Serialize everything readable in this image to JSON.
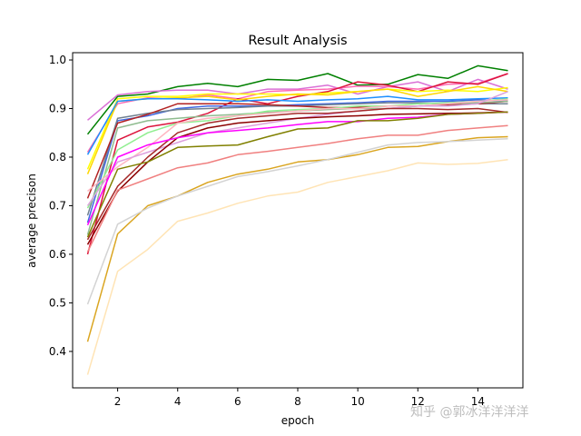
{
  "chart_data": {
    "type": "line",
    "title": "Result Analysis",
    "xlabel": "epoch",
    "ylabel": "average precison",
    "xlim": [
      0.5,
      15.5
    ],
    "ylim": [
      0.325,
      1.015
    ],
    "xticks": [
      "2",
      "4",
      "6",
      "8",
      "10",
      "12",
      "14"
    ],
    "yticks": [
      "0.4",
      "0.5",
      "0.6",
      "0.7",
      "0.8",
      "0.9",
      "1.0"
    ],
    "grid": false,
    "legend": "none",
    "x": [
      1,
      2,
      3,
      4,
      5,
      6,
      7,
      8,
      9,
      10,
      11,
      12,
      13,
      14,
      15
    ],
    "series": [
      {
        "color": "#008000",
        "values": [
          0.847,
          0.925,
          0.93,
          0.945,
          0.952,
          0.945,
          0.96,
          0.958,
          0.972,
          0.948,
          0.95,
          0.97,
          0.962,
          0.988,
          0.978
        ]
      },
      {
        "color": "#da70d6",
        "values": [
          0.876,
          0.928,
          0.935,
          0.938,
          0.938,
          0.93,
          0.94,
          0.94,
          0.948,
          0.93,
          0.945,
          0.955,
          0.935,
          0.96,
          0.94
        ]
      },
      {
        "color": "#ff69b4",
        "values": [
          0.81,
          0.91,
          0.922,
          0.92,
          0.928,
          0.92,
          0.935,
          0.938,
          0.94,
          0.946,
          0.945,
          0.94,
          0.95,
          0.952,
          0.972
        ]
      },
      {
        "color": "#dc143c",
        "values": [
          0.6,
          0.835,
          0.862,
          0.872,
          0.89,
          0.92,
          0.91,
          0.925,
          0.935,
          0.955,
          0.948,
          0.935,
          0.955,
          0.95,
          0.972
        ]
      },
      {
        "color": "#ffff00",
        "values": [
          0.775,
          0.92,
          0.925,
          0.925,
          0.93,
          0.93,
          0.93,
          0.928,
          0.932,
          0.935,
          0.94,
          0.935,
          0.938,
          0.935,
          0.943
        ]
      },
      {
        "color": "#ffd700",
        "values": [
          0.765,
          0.915,
          0.92,
          0.922,
          0.925,
          0.918,
          0.925,
          0.93,
          0.928,
          0.935,
          0.94,
          0.925,
          0.935,
          0.945,
          0.935
        ]
      },
      {
        "color": "#1e90ff",
        "values": [
          0.805,
          0.915,
          0.92,
          0.92,
          0.918,
          0.915,
          0.918,
          0.915,
          0.918,
          0.92,
          0.925,
          0.918,
          0.918,
          0.92,
          0.922
        ]
      },
      {
        "color": "#4169e1",
        "values": [
          0.665,
          0.875,
          0.885,
          0.9,
          0.905,
          0.905,
          0.905,
          0.908,
          0.91,
          0.912,
          0.915,
          0.915,
          0.915,
          0.918,
          0.915
        ]
      },
      {
        "color": "#708090",
        "values": [
          0.68,
          0.88,
          0.89,
          0.898,
          0.9,
          0.902,
          0.905,
          0.905,
          0.908,
          0.91,
          0.912,
          0.912,
          0.91,
          0.91,
          0.91
        ]
      },
      {
        "color": "#b22222",
        "values": [
          0.715,
          0.87,
          0.888,
          0.91,
          0.91,
          0.91,
          0.908,
          0.905,
          0.902,
          0.902,
          0.905,
          0.905,
          0.908,
          0.91,
          0.915
        ]
      },
      {
        "color": "#8fbc8f",
        "values": [
          0.64,
          0.86,
          0.875,
          0.88,
          0.885,
          0.888,
          0.892,
          0.895,
          0.898,
          0.9,
          0.9,
          0.905,
          0.91,
          0.912,
          0.915
        ]
      },
      {
        "color": "#90ee90",
        "values": [
          0.695,
          0.815,
          0.85,
          0.87,
          0.875,
          0.885,
          0.895,
          0.898,
          0.9,
          0.905,
          0.905,
          0.91,
          0.912,
          0.915,
          0.92
        ]
      },
      {
        "color": "#ffb6c1",
        "values": [
          0.73,
          0.78,
          0.82,
          0.87,
          0.88,
          0.885,
          0.89,
          0.895,
          0.9,
          0.9,
          0.905,
          0.905,
          0.91,
          0.915,
          0.918
        ]
      },
      {
        "color": "#dda0dd",
        "values": [
          0.7,
          0.79,
          0.81,
          0.83,
          0.85,
          0.86,
          0.87,
          0.88,
          0.888,
          0.895,
          0.9,
          0.905,
          0.905,
          0.91,
          0.935
        ]
      },
      {
        "color": "#a52a2a",
        "values": [
          0.63,
          0.74,
          0.8,
          0.85,
          0.87,
          0.88,
          0.885,
          0.89,
          0.89,
          0.895,
          0.9,
          0.9,
          0.898,
          0.9,
          0.892
        ]
      },
      {
        "color": "#8b0000",
        "values": [
          0.62,
          0.73,
          0.79,
          0.84,
          0.86,
          0.87,
          0.875,
          0.88,
          0.883,
          0.885,
          0.888,
          0.889,
          0.89,
          0.891,
          0.893
        ]
      },
      {
        "color": "#ff00ff",
        "values": [
          0.66,
          0.8,
          0.825,
          0.84,
          0.85,
          0.855,
          0.86,
          0.867,
          0.873,
          0.873,
          0.88,
          0.882,
          0.888,
          0.89,
          0.893
        ]
      },
      {
        "color": "#808000",
        "values": [
          0.635,
          0.775,
          0.79,
          0.82,
          0.823,
          0.825,
          0.842,
          0.858,
          0.86,
          0.875,
          0.875,
          0.88,
          0.888,
          0.89,
          0.893
        ]
      },
      {
        "color": "#f08080",
        "values": [
          0.605,
          0.732,
          0.755,
          0.778,
          0.788,
          0.805,
          0.812,
          0.82,
          0.828,
          0.838,
          0.845,
          0.845,
          0.855,
          0.86,
          0.865
        ]
      },
      {
        "color": "#daa520",
        "values": [
          0.42,
          0.642,
          0.7,
          0.72,
          0.748,
          0.765,
          0.775,
          0.79,
          0.795,
          0.805,
          0.82,
          0.822,
          0.832,
          0.84,
          0.842
        ]
      },
      {
        "color": "#d3d3d3",
        "values": [
          0.497,
          0.662,
          0.695,
          0.72,
          0.74,
          0.76,
          0.77,
          0.782,
          0.795,
          0.81,
          0.825,
          0.83,
          0.832,
          0.835,
          0.838
        ]
      },
      {
        "color": "#ffe4b5",
        "values": [
          0.352,
          0.565,
          0.61,
          0.668,
          0.685,
          0.705,
          0.72,
          0.728,
          0.748,
          0.76,
          0.772,
          0.788,
          0.785,
          0.787,
          0.795
        ]
      }
    ],
    "watermark": "知乎 @郭冰洋洋洋洋"
  }
}
